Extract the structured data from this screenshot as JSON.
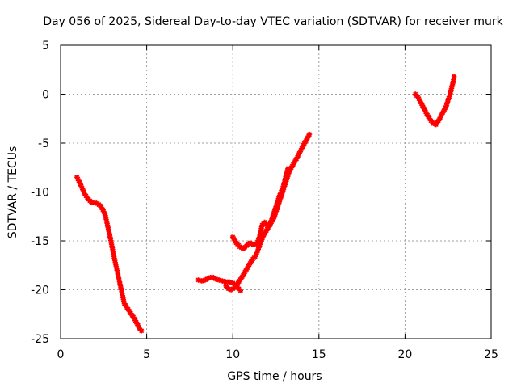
{
  "chart_data": {
    "type": "scatter",
    "title": "Day 056 of 2025, Sidereal Day-to-day VTEC variation (SDTVAR) for receiver murk",
    "xlabel": "GPS time / hours",
    "ylabel": "SDTVAR / TECUs",
    "xlim": [
      0,
      25
    ],
    "ylim": [
      -25,
      5
    ],
    "xticks": [
      0,
      5,
      10,
      15,
      20,
      25
    ],
    "yticks": [
      -25,
      -20,
      -15,
      -10,
      -5,
      0,
      5
    ],
    "grid": true,
    "marker": "cross",
    "colors": {
      "series": "#ff0000",
      "grid": "#a0a0a0",
      "axes": "#000000"
    },
    "series": [
      {
        "values": [
          [
            0.95,
            -8.5
          ],
          [
            1.1,
            -9.0
          ],
          [
            1.25,
            -9.6
          ],
          [
            1.4,
            -10.2
          ],
          [
            1.55,
            -10.6
          ],
          [
            1.7,
            -10.9
          ],
          [
            1.85,
            -11.1
          ],
          [
            2.0,
            -11.1
          ],
          [
            2.15,
            -11.2
          ],
          [
            2.3,
            -11.4
          ],
          [
            2.45,
            -11.8
          ],
          [
            2.6,
            -12.4
          ],
          [
            2.7,
            -13.2
          ],
          [
            2.8,
            -14.0
          ],
          [
            2.9,
            -14.8
          ],
          [
            3.0,
            -15.7
          ],
          [
            3.1,
            -16.6
          ],
          [
            3.2,
            -17.4
          ],
          [
            3.3,
            -18.2
          ],
          [
            3.4,
            -19.0
          ],
          [
            3.5,
            -19.8
          ],
          [
            3.6,
            -20.6
          ],
          [
            3.7,
            -21.4
          ],
          [
            3.85,
            -21.8
          ],
          [
            4.0,
            -22.2
          ],
          [
            4.15,
            -22.6
          ],
          [
            4.3,
            -23.0
          ],
          [
            4.45,
            -23.5
          ],
          [
            4.6,
            -24.0
          ],
          [
            4.7,
            -24.2
          ]
        ]
      },
      {
        "values": [
          [
            8.0,
            -19.0
          ],
          [
            8.2,
            -19.1
          ],
          [
            8.4,
            -19.0
          ],
          [
            8.6,
            -18.8
          ],
          [
            8.8,
            -18.7
          ],
          [
            9.0,
            -18.9
          ],
          [
            9.2,
            -19.0
          ],
          [
            9.4,
            -19.1
          ],
          [
            9.6,
            -19.2
          ],
          [
            9.8,
            -19.2
          ],
          [
            10.0,
            -19.3
          ],
          [
            10.2,
            -19.6
          ],
          [
            10.35,
            -19.9
          ],
          [
            10.45,
            -20.1
          ]
        ]
      },
      {
        "values": [
          [
            9.6,
            -19.6
          ],
          [
            9.75,
            -19.9
          ],
          [
            9.9,
            -20.0
          ],
          [
            10.1,
            -19.8
          ],
          [
            10.3,
            -19.3
          ],
          [
            10.5,
            -18.8
          ],
          [
            10.7,
            -18.2
          ],
          [
            10.9,
            -17.6
          ],
          [
            11.1,
            -17.0
          ],
          [
            11.3,
            -16.6
          ],
          [
            11.45,
            -16.0
          ],
          [
            11.6,
            -15.2
          ],
          [
            11.8,
            -14.4
          ],
          [
            12.0,
            -13.8
          ],
          [
            12.2,
            -13.2
          ],
          [
            12.4,
            -12.6
          ],
          [
            12.55,
            -11.8
          ],
          [
            12.7,
            -11.0
          ],
          [
            12.85,
            -10.2
          ],
          [
            13.0,
            -9.4
          ],
          [
            13.15,
            -8.6
          ],
          [
            13.3,
            -7.8
          ],
          [
            13.5,
            -7.2
          ],
          [
            13.7,
            -6.6
          ],
          [
            13.9,
            -5.9
          ],
          [
            14.1,
            -5.2
          ],
          [
            14.3,
            -4.6
          ],
          [
            14.45,
            -4.1
          ]
        ]
      },
      {
        "values": [
          [
            10.0,
            -14.6
          ],
          [
            10.2,
            -15.2
          ],
          [
            10.4,
            -15.6
          ],
          [
            10.6,
            -15.8
          ],
          [
            10.8,
            -15.5
          ],
          [
            11.0,
            -15.2
          ],
          [
            11.2,
            -15.4
          ],
          [
            11.4,
            -15.3
          ],
          [
            11.55,
            -14.6
          ],
          [
            11.7,
            -13.4
          ],
          [
            11.85,
            -13.1
          ],
          [
            12.0,
            -13.5
          ],
          [
            12.15,
            -13.4
          ],
          [
            12.3,
            -12.6
          ],
          [
            12.45,
            -11.8
          ],
          [
            12.6,
            -11.0
          ],
          [
            12.75,
            -10.2
          ],
          [
            12.9,
            -9.6
          ],
          [
            13.0,
            -9.0
          ],
          [
            13.1,
            -8.2
          ],
          [
            13.2,
            -7.6
          ]
        ]
      },
      {
        "values": [
          [
            20.6,
            0.0
          ],
          [
            20.75,
            -0.3
          ],
          [
            20.9,
            -0.8
          ],
          [
            21.05,
            -1.3
          ],
          [
            21.2,
            -1.8
          ],
          [
            21.35,
            -2.3
          ],
          [
            21.5,
            -2.7
          ],
          [
            21.65,
            -3.0
          ],
          [
            21.8,
            -3.1
          ],
          [
            21.95,
            -2.7
          ],
          [
            22.1,
            -2.2
          ],
          [
            22.25,
            -1.7
          ],
          [
            22.4,
            -1.2
          ],
          [
            22.5,
            -0.6
          ],
          [
            22.6,
            -0.1
          ],
          [
            22.7,
            0.6
          ],
          [
            22.8,
            1.3
          ],
          [
            22.85,
            1.8
          ]
        ]
      }
    ]
  }
}
